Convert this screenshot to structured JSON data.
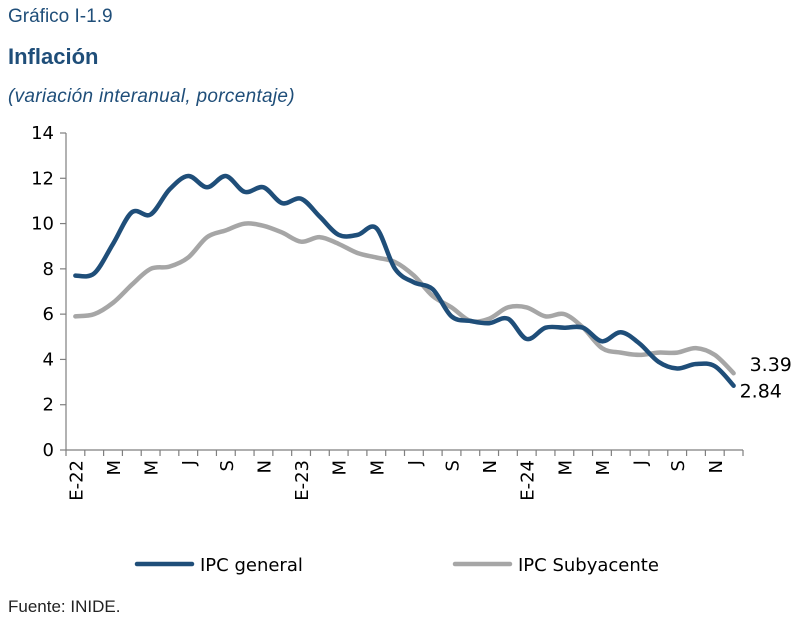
{
  "header": {
    "figure_number": "Gráfico I-1.9",
    "title": "Inflación",
    "subtitle": "(variación interanual, porcentaje)"
  },
  "footer": {
    "source": "Fuente: INIDE."
  },
  "colors": {
    "general": "#1f4e79",
    "subyacente": "#a6a6a6",
    "axis": "#7f7f7f"
  },
  "chart_data": {
    "type": "line",
    "ylim": [
      0,
      14
    ],
    "yticks": [
      0,
      2,
      4,
      6,
      8,
      10,
      12,
      14
    ],
    "grid": false,
    "legend": "bottom",
    "x": [
      "E-22",
      "F-22",
      "M-22",
      "A-22",
      "M-22",
      "J-22",
      "J-22",
      "A-22",
      "S-22",
      "O-22",
      "N-22",
      "D-22",
      "E-23",
      "F-23",
      "M-23",
      "A-23",
      "M-23",
      "J-23",
      "J-23",
      "A-23",
      "S-23",
      "O-23",
      "N-23",
      "D-23",
      "E-24",
      "F-24",
      "M-24",
      "A-24",
      "M-24",
      "J-24",
      "J-24",
      "A-24",
      "S-24",
      "O-24",
      "N-24",
      "D-24"
    ],
    "xticklabels": [
      "E-22",
      "",
      "M",
      "",
      "M",
      "",
      "J",
      "",
      "S",
      "",
      "N",
      "",
      "E-23",
      "",
      "M",
      "",
      "M",
      "",
      "J",
      "",
      "S",
      "",
      "N",
      "",
      "E-24",
      "",
      "M",
      "",
      "M",
      "",
      "J",
      "",
      "S",
      "",
      "N",
      ""
    ],
    "series": [
      {
        "name": "IPC general",
        "color": "#1f4e79",
        "values": [
          7.7,
          7.8,
          9.1,
          10.5,
          10.4,
          11.5,
          12.1,
          11.6,
          12.1,
          11.4,
          11.6,
          10.9,
          11.1,
          10.3,
          9.5,
          9.5,
          9.8,
          8.0,
          7.4,
          7.1,
          5.9,
          5.7,
          5.6,
          5.8,
          4.9,
          5.4,
          5.4,
          5.4,
          4.8,
          5.2,
          4.7,
          3.9,
          3.6,
          3.8,
          3.7,
          2.84
        ]
      },
      {
        "name": "IPC Subyacente",
        "color": "#a6a6a6",
        "values": [
          5.9,
          6.0,
          6.5,
          7.3,
          8.0,
          8.1,
          8.5,
          9.4,
          9.7,
          10.0,
          9.9,
          9.6,
          9.2,
          9.4,
          9.1,
          8.7,
          8.5,
          8.3,
          7.7,
          6.8,
          6.3,
          5.7,
          5.8,
          6.3,
          6.3,
          5.9,
          6.0,
          5.4,
          4.5,
          4.3,
          4.2,
          4.3,
          4.3,
          4.5,
          4.2,
          3.39
        ]
      }
    ],
    "end_labels": {
      "general": "2.84",
      "subyacente": "3.39"
    }
  }
}
